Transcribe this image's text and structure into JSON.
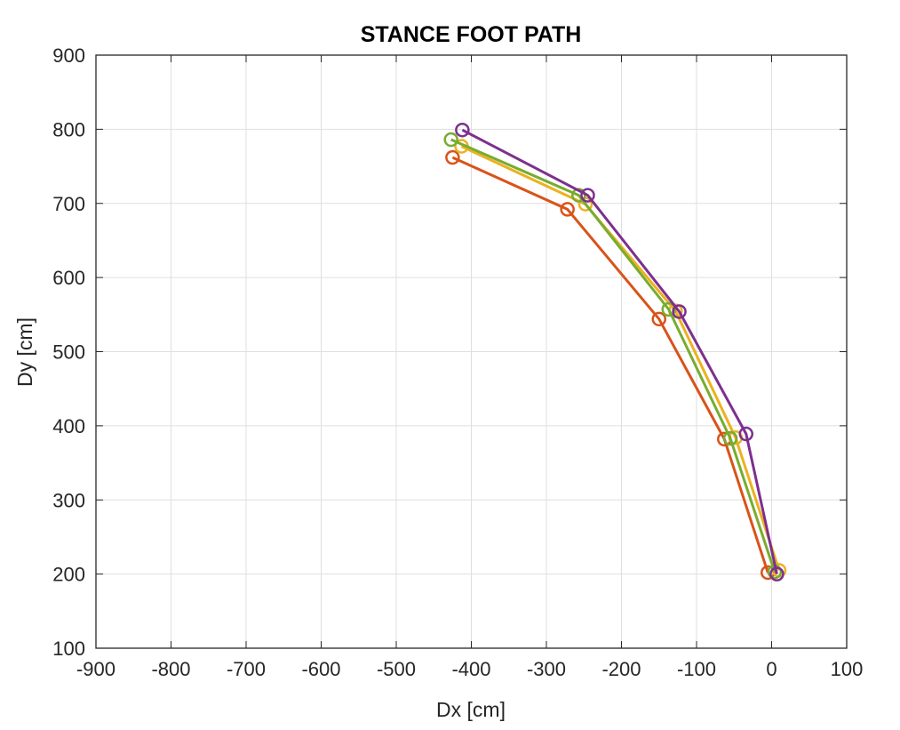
{
  "chart_data": {
    "type": "line",
    "title": "STANCE FOOT PATH",
    "xlabel": "Dx [cm]",
    "ylabel": "Dy [cm]",
    "xlim": [
      -900,
      100
    ],
    "ylim": [
      100,
      900
    ],
    "xticks": [
      -900,
      -800,
      -700,
      -600,
      -500,
      -400,
      -300,
      -200,
      -100,
      0,
      100
    ],
    "yticks": [
      100,
      200,
      300,
      400,
      500,
      600,
      700,
      800,
      900
    ],
    "grid": true,
    "marker": "circle",
    "series": [
      {
        "color": "#d95319",
        "x": [
          -425,
          -272,
          -150,
          -63,
          -5
        ],
        "y": [
          762,
          692,
          544,
          382,
          202
        ]
      },
      {
        "color": "#edb120",
        "x": [
          -413,
          -248,
          -128,
          -48,
          10
        ],
        "y": [
          777,
          699,
          555,
          384,
          205
        ]
      },
      {
        "color": "#77ac30",
        "x": [
          -427,
          -257,
          -137,
          -55,
          4
        ],
        "y": [
          786,
          711,
          557,
          383,
          203
        ]
      },
      {
        "color": "#7e2f8e",
        "x": [
          -412,
          -245,
          -123,
          -34,
          7
        ],
        "y": [
          799,
          711,
          554,
          389,
          200
        ]
      }
    ]
  }
}
